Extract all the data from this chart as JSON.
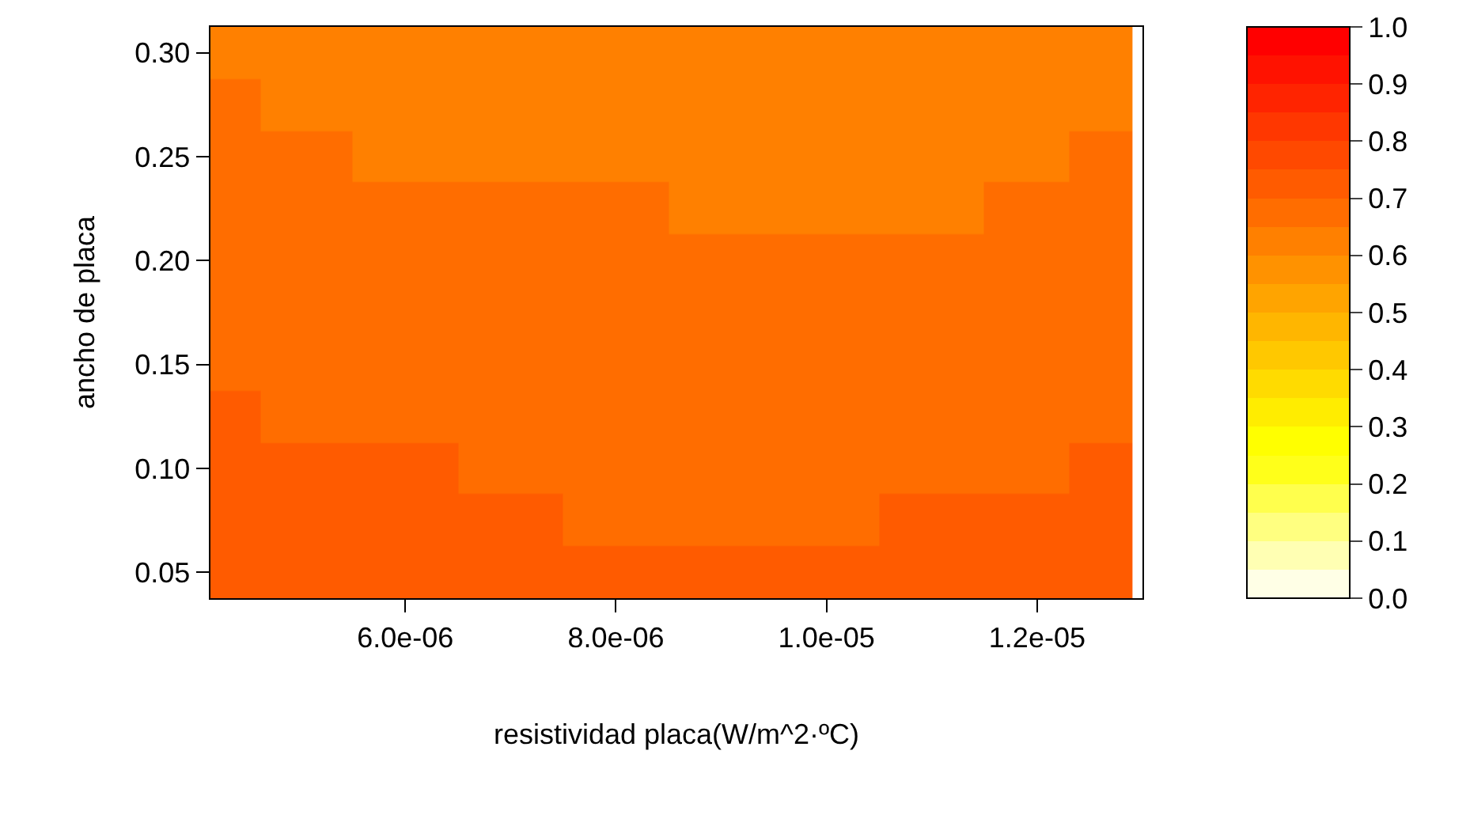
{
  "chart_data": {
    "type": "heatmap",
    "xlabel": "resistividad placa(W/m^2·ºC)",
    "ylabel": "ancho de placa",
    "x": [
      4.25e-06,
      5e-06,
      6e-06,
      7e-06,
      8e-06,
      9e-06,
      1e-05,
      1.1e-05,
      1.2e-05,
      1.26e-05
    ],
    "y_categories": [
      "0.30",
      null,
      "0.25",
      null,
      "0.20",
      null,
      "0.15",
      null,
      "0.10",
      null,
      "0.05"
    ],
    "cells": [
      [
        0.645,
        0.638,
        0.629,
        0.627,
        0.625,
        0.62,
        0.614,
        0.614,
        0.625,
        0.636
      ],
      [
        0.653,
        0.647,
        0.638,
        0.636,
        0.634,
        0.629,
        0.623,
        0.623,
        0.634,
        0.644
      ],
      [
        0.661,
        0.655,
        0.647,
        0.644,
        0.642,
        0.637,
        0.633,
        0.633,
        0.643,
        0.653
      ],
      [
        0.669,
        0.664,
        0.656,
        0.653,
        0.65,
        0.646,
        0.642,
        0.643,
        0.652,
        0.661
      ],
      [
        0.677,
        0.672,
        0.665,
        0.661,
        0.658,
        0.654,
        0.651,
        0.652,
        0.661,
        0.669
      ],
      [
        0.685,
        0.68,
        0.674,
        0.67,
        0.666,
        0.663,
        0.66,
        0.662,
        0.67,
        0.677
      ],
      [
        0.693,
        0.689,
        0.683,
        0.678,
        0.675,
        0.671,
        0.669,
        0.672,
        0.679,
        0.685
      ],
      [
        0.701,
        0.697,
        0.692,
        0.687,
        0.683,
        0.68,
        0.678,
        0.681,
        0.688,
        0.694
      ],
      [
        0.709,
        0.706,
        0.701,
        0.696,
        0.691,
        0.688,
        0.688,
        0.691,
        0.697,
        0.702
      ],
      [
        0.717,
        0.714,
        0.71,
        0.704,
        0.699,
        0.697,
        0.697,
        0.7,
        0.706,
        0.71
      ],
      [
        0.725,
        0.723,
        0.72,
        0.713,
        0.708,
        0.705,
        0.706,
        0.71,
        0.715,
        0.718
      ]
    ],
    "colors": [
      "#ffffe6",
      "#ffffb3",
      "#ffff80",
      "#ffff4d",
      "#ffff1a",
      "#ffff00",
      "#ffed00",
      "#ffdb00",
      "#ffc800",
      "#ffb600",
      "#ffa400",
      "#ff9200",
      "#ff8000",
      "#ff6d00",
      "#ff5b00",
      "#ff4900",
      "#ff3700",
      "#ff2400",
      "#ff1200",
      "#ff0000"
    ],
    "xlim": [
      4.15e-06,
      1.3e-05
    ],
    "xticks": [
      {
        "value": 6e-06,
        "label": "6.0e-06"
      },
      {
        "value": 8e-06,
        "label": "8.0e-06"
      },
      {
        "value": 1e-05,
        "label": "1.0e-05"
      },
      {
        "value": 1.2e-05,
        "label": "1.2e-05"
      }
    ],
    "clim": [
      0,
      1
    ],
    "cticks": [
      {
        "value": 0,
        "label": "0.0"
      },
      {
        "value": 0.1,
        "label": "0.1"
      },
      {
        "value": 0.2,
        "label": "0.2"
      },
      {
        "value": 0.3,
        "label": "0.3"
      },
      {
        "value": 0.4,
        "label": "0.4"
      },
      {
        "value": 0.5,
        "label": "0.5"
      },
      {
        "value": 0.6,
        "label": "0.6"
      },
      {
        "value": 0.7,
        "label": "0.7"
      },
      {
        "value": 0.8,
        "label": "0.8"
      },
      {
        "value": 0.9,
        "label": "0.9"
      },
      {
        "value": 1,
        "label": "1.0"
      }
    ]
  }
}
